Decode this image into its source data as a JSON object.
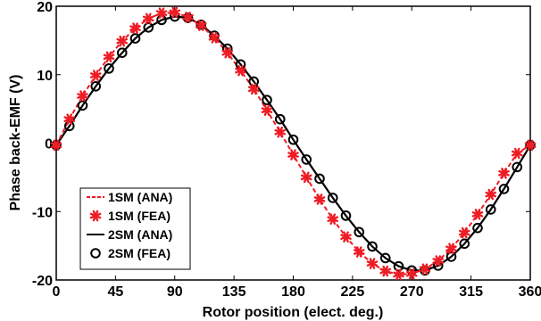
{
  "chart_data": {
    "type": "line",
    "xlabel": "Rotor position (elect. deg.)",
    "ylabel": "Phase back-EMF (V)",
    "xlim": [
      0,
      360
    ],
    "ylim": [
      -20,
      20
    ],
    "xticks": [
      "0",
      "45",
      "90",
      "135",
      "180",
      "225",
      "270",
      "315",
      "360"
    ],
    "yticks": [
      "20",
      "10",
      "0",
      "-10",
      "-20"
    ],
    "grid": false,
    "legend_position": "bottom-left",
    "x": [
      0,
      10,
      20,
      30,
      40,
      50,
      60,
      70,
      80,
      90,
      100,
      110,
      120,
      130,
      140,
      150,
      160,
      170,
      180,
      190,
      200,
      210,
      220,
      230,
      240,
      250,
      260,
      270,
      280,
      290,
      300,
      310,
      320,
      330,
      340,
      350,
      360
    ],
    "series": [
      {
        "name": "1SM (ANA)",
        "style": "dashed",
        "color": "#ee1c25",
        "values": [
          -0.3,
          3.5,
          6.9,
          9.9,
          12.6,
          14.9,
          16.8,
          18.2,
          19.0,
          19.1,
          18.4,
          17.2,
          15.4,
          13.2,
          10.6,
          7.9,
          4.8,
          1.6,
          -1.7,
          -5.0,
          -8.2,
          -11.1,
          -13.7,
          -15.9,
          -17.6,
          -18.7,
          -19.2,
          -19.1,
          -18.4,
          -17.2,
          -15.4,
          -13.1,
          -10.4,
          -7.5,
          -4.4,
          -1.5,
          -0.3
        ]
      },
      {
        "name": "1SM (FEA)",
        "style": "star",
        "color": "#ee1c25",
        "values": [
          -0.3,
          3.5,
          6.9,
          9.9,
          12.6,
          14.9,
          16.8,
          18.2,
          19.0,
          19.1,
          18.4,
          17.2,
          15.4,
          13.2,
          10.6,
          7.9,
          4.8,
          1.6,
          -1.7,
          -5.0,
          -8.2,
          -11.1,
          -13.7,
          -15.9,
          -17.6,
          -18.7,
          -19.2,
          -19.1,
          -18.4,
          -17.2,
          -15.4,
          -13.1,
          -10.4,
          -7.5,
          -4.4,
          -1.5,
          -0.3
        ]
      },
      {
        "name": "2SM (ANA)",
        "style": "solid",
        "color": "#000000",
        "values": [
          -0.3,
          2.5,
          5.5,
          8.3,
          10.9,
          13.2,
          15.3,
          16.9,
          18.0,
          18.5,
          18.3,
          17.3,
          15.7,
          13.8,
          11.5,
          9.0,
          6.3,
          3.5,
          0.5,
          -2.4,
          -5.2,
          -8.0,
          -10.6,
          -13.0,
          -15.1,
          -16.8,
          -18.0,
          -18.6,
          -18.6,
          -17.9,
          -16.6,
          -14.7,
          -12.4,
          -9.7,
          -6.7,
          -3.5,
          -0.3
        ]
      },
      {
        "name": "2SM (FEA)",
        "style": "circle",
        "color": "#000000",
        "values": [
          -0.3,
          2.5,
          5.5,
          8.3,
          10.9,
          13.2,
          15.3,
          16.9,
          18.0,
          18.5,
          18.3,
          17.3,
          15.7,
          13.8,
          11.5,
          9.0,
          6.3,
          3.5,
          0.5,
          -2.4,
          -5.2,
          -8.0,
          -10.6,
          -13.0,
          -15.1,
          -16.8,
          -18.0,
          -18.6,
          -18.6,
          -17.9,
          -16.6,
          -14.7,
          -12.4,
          -9.7,
          -6.7,
          -3.5,
          -0.3
        ]
      }
    ]
  }
}
